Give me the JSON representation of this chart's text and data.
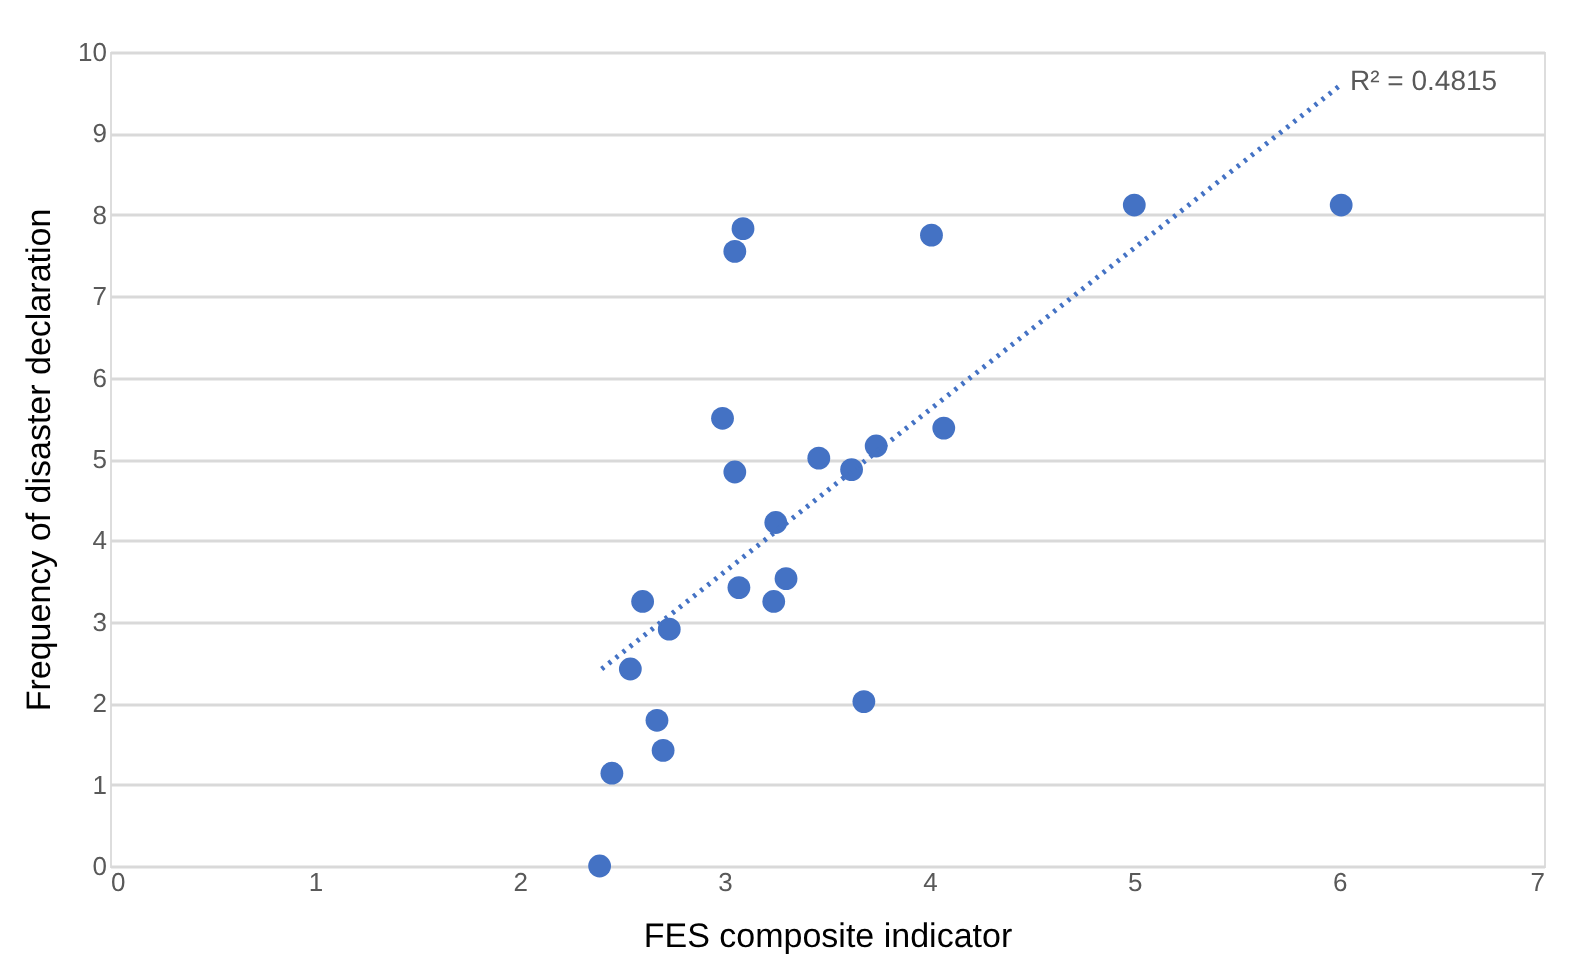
{
  "chart_data": {
    "type": "scatter",
    "xlabel": "FES composite indicator",
    "ylabel": "Frequency of disaster declaration",
    "xlim": [
      0,
      7
    ],
    "xticks": [
      0,
      1,
      2,
      3,
      4,
      5,
      6,
      7
    ],
    "ylim": [
      0,
      10
    ],
    "yticks": [
      0,
      1,
      2,
      3,
      4,
      5,
      6,
      7,
      8,
      9,
      10
    ],
    "grid": "y",
    "series": [
      {
        "color": "#4472c4",
        "marker": "circle",
        "x": [
          2.39,
          2.45,
          2.7,
          2.67,
          2.54,
          2.6,
          2.73,
          3.07,
          3.24,
          3.3,
          3.25,
          3.05,
          2.99,
          3.46,
          3.62,
          3.74,
          4.07,
          3.68,
          3.05,
          3.09,
          4.01,
          5.0,
          6.01
        ],
        "values": [
          0.0,
          1.14,
          1.42,
          1.79,
          2.42,
          3.25,
          2.91,
          3.42,
          3.25,
          3.53,
          4.22,
          4.84,
          5.5,
          5.01,
          4.87,
          5.16,
          5.38,
          2.02,
          7.55,
          7.83,
          7.75,
          8.12,
          8.12
        ]
      },
      {
        "type": "line",
        "color": "#4472c4",
        "line_style": "dotted",
        "marker": "none",
        "x": [
          2.4,
          6.0
        ],
        "values": [
          2.42,
          9.58
        ]
      }
    ],
    "annotations": [
      "R² = 0.4815"
    ]
  }
}
